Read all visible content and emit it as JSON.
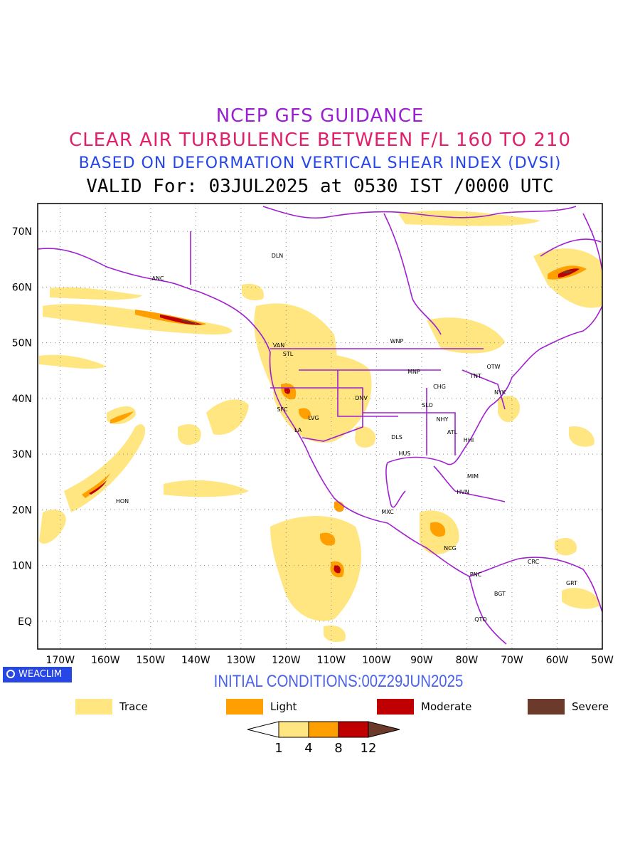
{
  "titles": {
    "line1": "NCEP GFS GUIDANCE",
    "line2": "CLEAR AIR TURBULENCE BETWEEN F/L 160 TO 210",
    "line3": "BASED ON DEFORMATION VERTICAL SHEAR INDEX (DVSI)",
    "line4": "VALID For: 03JUL2025 at 0530 IST /0000 UTC"
  },
  "map": {
    "lat_range": [
      -5,
      75
    ],
    "lon_range": [
      -175,
      -50
    ],
    "lat_labels": [
      "70N",
      "60N",
      "50N",
      "40N",
      "30N",
      "20N",
      "10N",
      "EQ"
    ],
    "lon_labels": [
      "170W",
      "160W",
      "150W",
      "140W",
      "130W",
      "120W",
      "110W",
      "100W",
      "90W",
      "80W",
      "70W",
      "60W",
      "50W"
    ],
    "cities": [
      {
        "name": "ANC"
      },
      {
        "name": "DLN"
      },
      {
        "name": "VAN"
      },
      {
        "name": "STL"
      },
      {
        "name": "WNP"
      },
      {
        "name": "MNP"
      },
      {
        "name": "TNT"
      },
      {
        "name": "OTW"
      },
      {
        "name": "CHG"
      },
      {
        "name": "NYK"
      },
      {
        "name": "DNV"
      },
      {
        "name": "SFC"
      },
      {
        "name": "LVG"
      },
      {
        "name": "LA"
      },
      {
        "name": "SLO"
      },
      {
        "name": "NHY"
      },
      {
        "name": "ATL"
      },
      {
        "name": "DLS"
      },
      {
        "name": "HHI"
      },
      {
        "name": "HUS"
      },
      {
        "name": "MIM"
      },
      {
        "name": "HVN"
      },
      {
        "name": "HON"
      },
      {
        "name": "MXC"
      },
      {
        "name": "NCG"
      },
      {
        "name": "PNC"
      },
      {
        "name": "CRC"
      },
      {
        "name": "GRT"
      },
      {
        "name": "BGT"
      },
      {
        "name": "QTO"
      }
    ],
    "colors": {
      "trace": "#ffe680",
      "light": "#ffa000",
      "moderate": "#c00000",
      "severe": "#6b3a2a",
      "boundaries": "#a020d0"
    }
  },
  "footer": {
    "brand": "WEACLIM",
    "initial_conditions": "INITIAL CONDITIONS:00Z29JUN2025"
  },
  "legend": [
    {
      "label": "Trace",
      "color": "#ffe680"
    },
    {
      "label": "Light",
      "color": "#ffa000"
    },
    {
      "label": "Moderate",
      "color": "#c00000"
    },
    {
      "label": "Severe",
      "color": "#6b3a2a"
    }
  ],
  "colorbar": {
    "ticks": [
      "1",
      "4",
      "8",
      "12"
    ]
  }
}
